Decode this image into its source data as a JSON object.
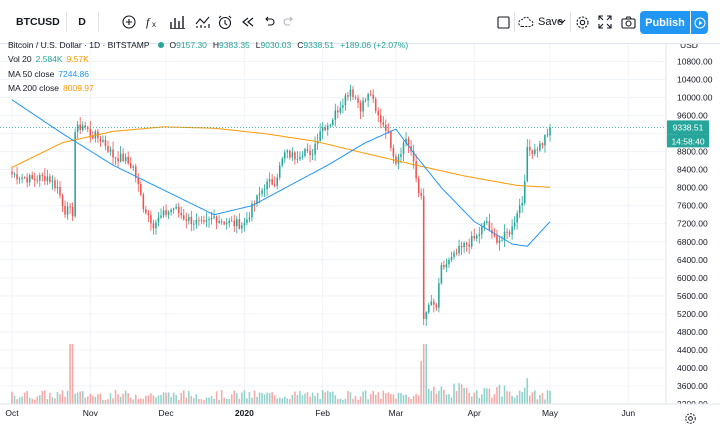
{
  "toolbar": {
    "symbol": "BTCUSD",
    "interval": "D",
    "save_label": "Save",
    "publish_label": "Publish",
    "icons": [
      "add-symbol-icon",
      "indicators-fx-icon",
      "bar-style-icon",
      "indicator-template-icon",
      "alert-icon",
      "replay-icon",
      "undo-icon",
      "redo-icon",
      "fullscreen-layout-icon",
      "cloud-save-icon",
      "chevron-down-icon",
      "settings-icon",
      "fullscreen-icon",
      "camera-icon",
      "play-icon"
    ]
  },
  "legend": {
    "title": "Bitcoin / U.S. Dollar · 1D · BITSTAMP",
    "open_key": "O",
    "open": "9157.30",
    "high_key": "H",
    "high": "9383.35",
    "low_key": "L",
    "low": "9030.03",
    "close_key": "C",
    "close": "9338.51",
    "change": "+189.06 (+2.07%)",
    "vol_name": "Vol 20",
    "vol_value": "2.584K",
    "vol_ma": "9.57K",
    "ma50_name": "MA 50 close",
    "ma50_value": "7244.86",
    "ma200_name": "MA 200 close",
    "ma200_value": "8009.97"
  },
  "colors": {
    "up": "#26a69a",
    "down": "#ef5350",
    "ma50": "#2196f3",
    "ma200": "#ff9800",
    "accent": "#2196f3"
  },
  "price_scale": {
    "currency": "USD",
    "ticks": [
      3200,
      3600,
      4000,
      4400,
      4800,
      5200,
      5600,
      6000,
      6400,
      6800,
      7200,
      7600,
      8000,
      8400,
      8800,
      9200,
      9600,
      10000,
      10400,
      10800
    ],
    "last_price": "9338.51",
    "countdown": "14:58:40"
  },
  "time_scale": {
    "labels": [
      {
        "text": "Oct",
        "bold": false,
        "index": 0
      },
      {
        "text": "Nov",
        "bold": false,
        "index": 31
      },
      {
        "text": "Dec",
        "bold": false,
        "index": 61
      },
      {
        "text": "2020",
        "bold": true,
        "index": 92
      },
      {
        "text": "Feb",
        "bold": false,
        "index": 123
      },
      {
        "text": "Mar",
        "bold": false,
        "index": 152
      },
      {
        "text": "Apr",
        "bold": false,
        "index": 183
      },
      {
        "text": "May",
        "bold": false,
        "index": 213
      },
      {
        "text": "Jun",
        "bold": false,
        "index": 244
      }
    ]
  },
  "chart_data": {
    "type": "candlestick",
    "x_start": "2019-10-01",
    "ylim": [
      3200,
      11100
    ],
    "anchors": [
      [
        0,
        8300
      ],
      [
        8,
        8180
      ],
      [
        14,
        8250
      ],
      [
        18,
        8000
      ],
      [
        21,
        7500
      ],
      [
        24,
        7450
      ],
      [
        25,
        9250
      ],
      [
        28,
        9400
      ],
      [
        31,
        9200
      ],
      [
        36,
        9050
      ],
      [
        40,
        8700
      ],
      [
        44,
        8650
      ],
      [
        48,
        8450
      ],
      [
        52,
        7600
      ],
      [
        56,
        7200
      ],
      [
        60,
        7400
      ],
      [
        64,
        7550
      ],
      [
        68,
        7350
      ],
      [
        72,
        7250
      ],
      [
        76,
        7150
      ],
      [
        80,
        7350
      ],
      [
        84,
        7250
      ],
      [
        88,
        7200
      ],
      [
        92,
        7200
      ],
      [
        96,
        7650
      ],
      [
        100,
        8050
      ],
      [
        104,
        8150
      ],
      [
        108,
        8750
      ],
      [
        112,
        8700
      ],
      [
        116,
        8850
      ],
      [
        118,
        8650
      ],
      [
        122,
        9300
      ],
      [
        126,
        9450
      ],
      [
        130,
        9850
      ],
      [
        134,
        10200
      ],
      [
        138,
        9800
      ],
      [
        142,
        10100
      ],
      [
        144,
        9650
      ],
      [
        148,
        9350
      ],
      [
        152,
        8600
      ],
      [
        156,
        9100
      ],
      [
        158,
        8800
      ],
      [
        161,
        7900
      ],
      [
        162,
        7900
      ],
      [
        163,
        5000
      ],
      [
        165,
        5400
      ],
      [
        168,
        5350
      ],
      [
        170,
        6200
      ],
      [
        174,
        6400
      ],
      [
        177,
        6600
      ],
      [
        180,
        6750
      ],
      [
        184,
        6900
      ],
      [
        188,
        7250
      ],
      [
        190,
        6900
      ],
      [
        194,
        6850
      ],
      [
        198,
        7100
      ],
      [
        200,
        7500
      ],
      [
        202,
        7700
      ],
      [
        204,
        8800
      ],
      [
        208,
        8900
      ],
      [
        210,
        9000
      ],
      [
        213,
        9338
      ]
    ],
    "volume_spikes": [
      [
        23,
        4.2
      ],
      [
        24,
        3.2
      ],
      [
        163,
        5.5
      ],
      [
        164,
        4.0
      ],
      [
        204,
        3.0
      ]
    ],
    "ma50_anchors": [
      [
        0,
        9950
      ],
      [
        20,
        9200
      ],
      [
        40,
        8500
      ],
      [
        60,
        7950
      ],
      [
        80,
        7400
      ],
      [
        95,
        7600
      ],
      [
        110,
        8050
      ],
      [
        125,
        8500
      ],
      [
        140,
        9000
      ],
      [
        152,
        9300
      ],
      [
        160,
        8700
      ],
      [
        170,
        8000
      ],
      [
        183,
        7250
      ],
      [
        198,
        6750
      ],
      [
        204,
        6700
      ],
      [
        213,
        7245
      ]
    ],
    "ma200_anchors": [
      [
        0,
        8450
      ],
      [
        20,
        9000
      ],
      [
        40,
        9250
      ],
      [
        60,
        9350
      ],
      [
        80,
        9320
      ],
      [
        100,
        9200
      ],
      [
        120,
        9030
      ],
      [
        140,
        8760
      ],
      [
        160,
        8500
      ],
      [
        180,
        8250
      ],
      [
        200,
        8050
      ],
      [
        213,
        8010
      ]
    ]
  }
}
